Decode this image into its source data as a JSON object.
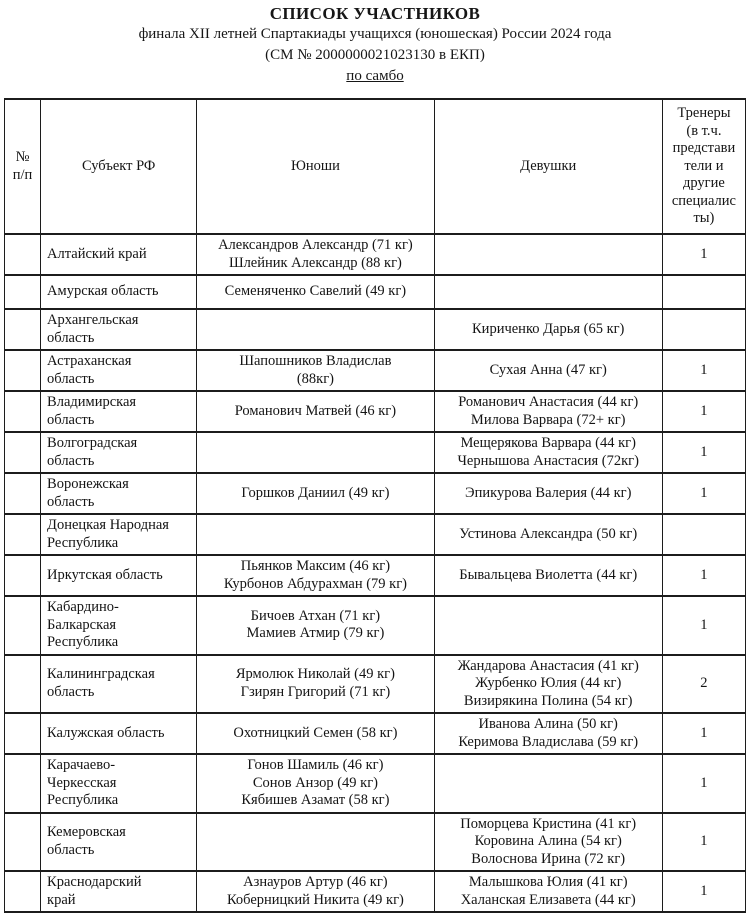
{
  "header": {
    "title": "СПИСОК УЧАСТНИКОВ",
    "subtitle": "финала XII летней Спартакиады учащихся (юношеская) России 2024 года",
    "registry_line": "(СМ № 2000000021023130 в ЕКП)",
    "sport": "по самбо"
  },
  "table": {
    "headers": {
      "number": "№ п/п",
      "region": "Субъект РФ",
      "boys": "Юноши",
      "girls": "Девушки",
      "coaches": "Тренеры\n(в т.ч.\nпредстави\nтели и\nдругие\nспециалис\nты)"
    },
    "rows": [
      {
        "number": "",
        "region": "Алтайский край",
        "boys": [
          "Александров Александр (71 кг)",
          "Шлейник Александр (88 кг)"
        ],
        "girls": [],
        "coaches": "1"
      },
      {
        "number": "",
        "region": "Амурская область",
        "boys": [
          "Семеняченко Савелий (49 кг)"
        ],
        "girls": [],
        "coaches": ""
      },
      {
        "number": "",
        "region": "Архангельская\nобласть",
        "boys": [],
        "girls": [
          "Кириченко Дарья (65 кг)"
        ],
        "coaches": ""
      },
      {
        "number": "",
        "region": "Астраханская\nобласть",
        "boys": [
          "Шапошников Владислав\n(88кг)"
        ],
        "girls": [
          "Сухая Анна (47 кг)"
        ],
        "coaches": "1"
      },
      {
        "number": "",
        "region": "Владимирская\nобласть",
        "boys": [
          "Романович Матвей (46 кг)"
        ],
        "girls": [
          "Романович Анастасия (44 кг)",
          "Милова Варвара (72+ кг)"
        ],
        "coaches": "1"
      },
      {
        "number": "",
        "region": "Волгоградская\nобласть",
        "boys": [],
        "girls": [
          "Мещерякова Варвара (44 кг)",
          "Чернышова Анастасия (72кг)"
        ],
        "coaches": "1"
      },
      {
        "number": "",
        "region": "Воронежская\nобласть",
        "boys": [
          "Горшков Даниил (49 кг)"
        ],
        "girls": [
          "Эпикурова Валерия (44 кг)"
        ],
        "coaches": "1"
      },
      {
        "number": "",
        "region": "Донецкая Народная\nРеспублика",
        "boys": [],
        "girls": [
          "Устинова Александра (50 кг)"
        ],
        "coaches": ""
      },
      {
        "number": "",
        "region": "Иркутская область",
        "boys": [
          "Пьянков Максим (46 кг)",
          "Курбонов Абдурахман (79 кг)"
        ],
        "girls": [
          "Бывальцева Виолетта (44 кг)"
        ],
        "coaches": "1"
      },
      {
        "number": "",
        "region": "Кабардино-\nБалкарская\nРеспублика",
        "boys": [
          "Бичоев Атхан (71 кг)",
          "Мамиев Атмир (79 кг)"
        ],
        "girls": [],
        "coaches": "1"
      },
      {
        "number": "",
        "region": "Калининградская\nобласть",
        "boys": [
          "Ярмолюк Николай (49 кг)",
          "Гзирян Григорий (71 кг)"
        ],
        "girls": [
          "Жандарова Анастасия (41 кг)",
          "Журбенко Юлия (44 кг)",
          "Визирякина Полина (54 кг)"
        ],
        "coaches": "2"
      },
      {
        "number": "",
        "region": "Калужская область",
        "boys": [
          "Охотницкий Семен (58 кг)"
        ],
        "girls": [
          "Иванова Алина (50 кг)",
          "Керимова Владислава (59 кг)"
        ],
        "coaches": "1"
      },
      {
        "number": "",
        "region": "Карачаево-\nЧеркесская\nРеспублика",
        "boys": [
          "Гонов Шамиль (46 кг)",
          "Сонов Анзор (49 кг)",
          "Кябишев Азамат (58 кг)"
        ],
        "girls": [],
        "coaches": "1"
      },
      {
        "number": "",
        "region": "Кемеровская\nобласть",
        "boys": [],
        "girls": [
          "Поморцева Кристина (41 кг)",
          "Коровина Алина (54 кг)",
          "Волоснова Ирина (72 кг)"
        ],
        "coaches": "1"
      },
      {
        "number": "",
        "region": "Краснодарский\nкрай",
        "boys": [
          "Азнауров Артур (46 кг)",
          "Коберницкий Никита (49 кг)"
        ],
        "girls": [
          "Малышкова Юлия (41 кг)",
          "Халанская Елизавета (44 кг)"
        ],
        "coaches": "1"
      }
    ]
  },
  "colors": {
    "text": "#161616",
    "border": "#1c1c1c",
    "background": "#ffffff"
  }
}
